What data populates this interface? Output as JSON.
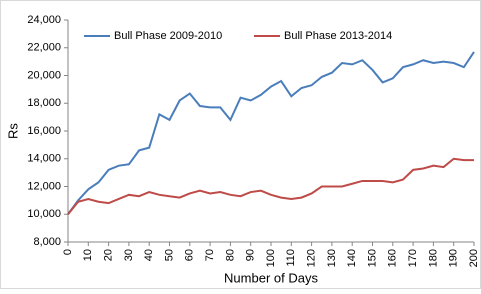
{
  "chart_data": {
    "type": "line",
    "x_label": "Number of Days",
    "y_label": "Rs",
    "x": [
      0,
      5,
      10,
      15,
      20,
      25,
      30,
      35,
      40,
      45,
      50,
      55,
      60,
      65,
      70,
      75,
      80,
      85,
      90,
      95,
      100,
      105,
      110,
      115,
      120,
      125,
      130,
      135,
      140,
      145,
      150,
      155,
      160,
      165,
      170,
      175,
      180,
      185,
      190,
      195,
      200
    ],
    "series": [
      {
        "name": "Bull Phase 2009-2010",
        "color": "#4a7ebb",
        "values": [
          10000,
          11000,
          11800,
          12300,
          13200,
          13500,
          13600,
          14600,
          14800,
          17200,
          16800,
          18200,
          18700,
          17800,
          17700,
          17700,
          16800,
          18400,
          18200,
          18600,
          19200,
          19600,
          18500,
          19100,
          19300,
          19900,
          20200,
          20900,
          20800,
          21100,
          20400,
          19500,
          19800,
          20600,
          20800,
          21100,
          20900,
          21000,
          20900,
          20600,
          21700
        ]
      },
      {
        "name": "Bull Phase 2013-2014",
        "color": "#be4b48",
        "values": [
          10000,
          10900,
          11100,
          10900,
          10800,
          11100,
          11400,
          11300,
          11600,
          11400,
          11300,
          11200,
          11500,
          11700,
          11500,
          11600,
          11400,
          11300,
          11600,
          11700,
          11400,
          11200,
          11100,
          11200,
          11500,
          12000,
          12000,
          12000,
          12200,
          12400,
          12400,
          12400,
          12300,
          12500,
          13200,
          13300,
          13500,
          13400,
          14000,
          13900,
          13900
        ]
      }
    ],
    "xlim": [
      0,
      200
    ],
    "xticks": [
      0,
      10,
      20,
      30,
      40,
      50,
      60,
      70,
      80,
      90,
      100,
      110,
      120,
      130,
      140,
      150,
      160,
      170,
      180,
      190,
      200
    ],
    "ylim": [
      8000,
      24000
    ],
    "yticks": [
      {
        "value": 8000,
        "label": "8,000"
      },
      {
        "value": 10000,
        "label": "10,000"
      },
      {
        "value": 12000,
        "label": "12,000"
      },
      {
        "value": 14000,
        "label": "14,000"
      },
      {
        "value": 16000,
        "label": "16,000"
      },
      {
        "value": 18000,
        "label": "18,000"
      },
      {
        "value": 20000,
        "label": "20,000"
      },
      {
        "value": 22000,
        "label": "22,000"
      },
      {
        "value": 24000,
        "label": "24,000"
      }
    ],
    "legend": "top-left"
  }
}
